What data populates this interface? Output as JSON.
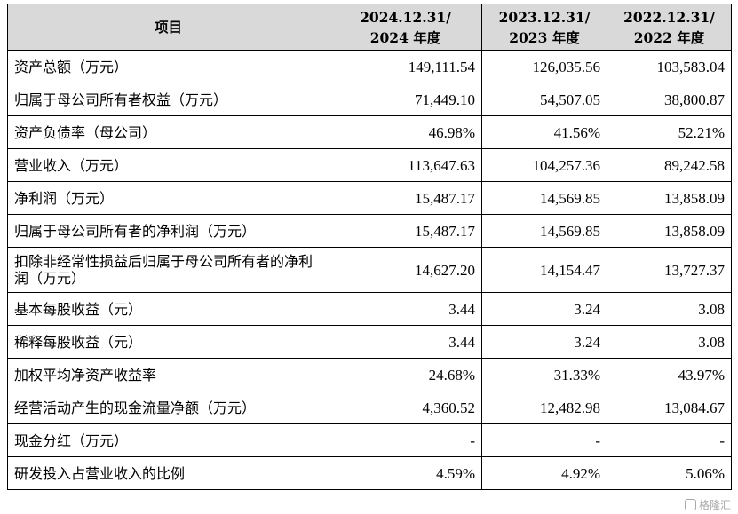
{
  "headers": [
    "项目",
    "2024.12.31/\n2024 年度",
    "2023.12.31/\n2023 年度",
    "2022.12.31/\n2022 年度"
  ],
  "rows": [
    {
      "label": "资产总额（万元）",
      "values": [
        "149,111.54",
        "126,035.56",
        "103,583.04"
      ]
    },
    {
      "label": "归属于母公司所有者权益（万元）",
      "values": [
        "71,449.10",
        "54,507.05",
        "38,800.87"
      ]
    },
    {
      "label": "资产负债率（母公司）",
      "values": [
        "46.98%",
        "41.56%",
        "52.21%"
      ]
    },
    {
      "label": "营业收入（万元）",
      "values": [
        "113,647.63",
        "104,257.36",
        "89,242.58"
      ]
    },
    {
      "label": "净利润（万元）",
      "values": [
        "15,487.17",
        "14,569.85",
        "13,858.09"
      ]
    },
    {
      "label": "归属于母公司所有者的净利润（万元）",
      "values": [
        "15,487.17",
        "14,569.85",
        "13,858.09"
      ]
    },
    {
      "label": "扣除非经常性损益后归属于母公司所有者的净利润（万元）",
      "values": [
        "14,627.20",
        "14,154.47",
        "13,727.37"
      ]
    },
    {
      "label": "基本每股收益（元）",
      "values": [
        "3.44",
        "3.24",
        "3.08"
      ]
    },
    {
      "label": "稀释每股收益（元）",
      "values": [
        "3.44",
        "3.24",
        "3.08"
      ]
    },
    {
      "label": "加权平均净资产收益率",
      "values": [
        "24.68%",
        "31.33%",
        "43.97%"
      ]
    },
    {
      "label": "经营活动产生的现金流量净额（万元）",
      "values": [
        "4,360.52",
        "12,482.98",
        "13,084.67"
      ]
    },
    {
      "label": "现金分红（万元）",
      "values": [
        "-",
        "-",
        "-"
      ]
    },
    {
      "label": "研发投入占营业收入的比例",
      "values": [
        "4.59%",
        "4.92%",
        "5.06%"
      ]
    }
  ],
  "watermark": {
    "text": "格隆汇",
    "icon": "gelonghui-logo-icon"
  }
}
